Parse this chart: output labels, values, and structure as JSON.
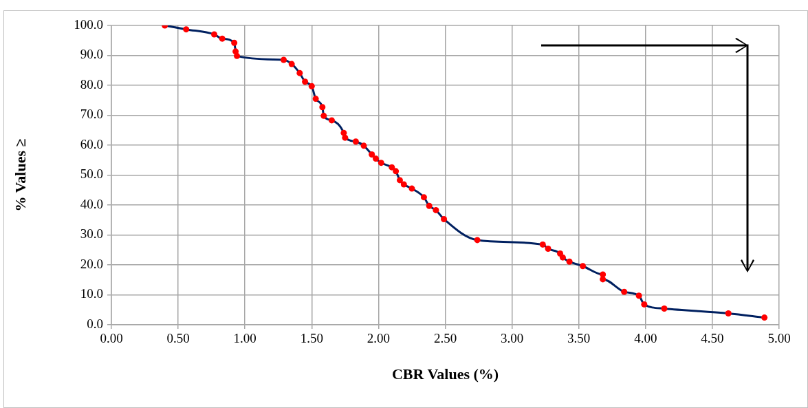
{
  "chart_data": {
    "type": "line",
    "xlabel": "CBR Values (%)",
    "ylabel": "% Values ≥",
    "xlim": [
      0,
      5
    ],
    "xticks": [
      {
        "value": 0,
        "label": "0.00"
      },
      {
        "value": 0.5,
        "label": "0.50"
      },
      {
        "value": 1,
        "label": "1.00"
      },
      {
        "value": 1.5,
        "label": "1.50"
      },
      {
        "value": 2,
        "label": "2.00"
      },
      {
        "value": 2.5,
        "label": "2.50"
      },
      {
        "value": 3,
        "label": "3.00"
      },
      {
        "value": 3.5,
        "label": "3.50"
      },
      {
        "value": 4,
        "label": "4.00"
      },
      {
        "value": 4.5,
        "label": "4.50"
      },
      {
        "value": 5,
        "label": "5.00"
      }
    ],
    "ylim": [
      0,
      100
    ],
    "yticks": [
      {
        "value": 0,
        "label": "0.0"
      },
      {
        "value": 10,
        "label": "10.0"
      },
      {
        "value": 20,
        "label": "20.0"
      },
      {
        "value": 30,
        "label": "30.0"
      },
      {
        "value": 40,
        "label": "40.0"
      },
      {
        "value": 50,
        "label": "50.0"
      },
      {
        "value": 60,
        "label": "60.0"
      },
      {
        "value": 70,
        "label": "70.0"
      },
      {
        "value": 80,
        "label": "80.0"
      },
      {
        "value": 90,
        "label": "90.0"
      },
      {
        "value": 100,
        "label": "100.0"
      }
    ],
    "grid": true,
    "legend": false,
    "marker": "circle",
    "line_style": "solid",
    "series": [
      {
        "color": "#002060",
        "colors": [
          "#ff0000",
          "#ff0000",
          "#ff0000",
          "#ff0000",
          "#ff0000",
          "#ff0000",
          "#ff0000",
          "#ff0000",
          "#ff0000",
          "#ff0000",
          "#ff0000",
          "#ff0000",
          "#ff0000",
          "#ff0000",
          "#ff0000",
          "#ff0000",
          "#ff0000",
          "#ff0000",
          "#ff0000",
          "#ff0000",
          "#ff0000",
          "#ff0000",
          "#ff0000",
          "#ff0000",
          "#ff0000",
          "#ff0000",
          "#ff0000",
          "#ff0000",
          "#ff0000",
          "#ff0000",
          "#ff0000",
          "#ff0000",
          "#ff0000",
          "#ff0000",
          "#ff0000",
          "#ff0000",
          "#ff0000",
          "#ff0000",
          "#ff0000",
          "#ff0000",
          "#ff0000",
          "#ff0000",
          "#ff0000",
          "#ff0000",
          "#ff0000",
          "#ff0000",
          "#ff0000"
        ],
        "x": [
          0.4,
          0.56,
          0.77,
          0.83,
          0.92,
          0.93,
          0.94,
          1.29,
          1.35,
          1.41,
          1.45,
          1.5,
          1.53,
          1.58,
          1.59,
          1.65,
          1.74,
          1.75,
          1.83,
          1.89,
          1.95,
          1.98,
          2.02,
          2.1,
          2.13,
          2.16,
          2.19,
          2.25,
          2.34,
          2.38,
          2.43,
          2.49,
          2.74,
          3.23,
          3.27,
          3.36,
          3.38,
          3.43,
          3.53,
          3.68,
          3.68,
          3.84,
          3.95,
          3.99,
          4.14,
          4.62,
          4.89
        ],
        "values": [
          100,
          98.7,
          97.0,
          95.6,
          94.2,
          91.3,
          89.8,
          88.5,
          87.1,
          84.1,
          81.2,
          79.7,
          75.5,
          72.7,
          69.8,
          68.3,
          64.1,
          62.5,
          61.2,
          59.8,
          56.9,
          55.5,
          54.1,
          52.6,
          51.3,
          48.3,
          46.9,
          45.5,
          42.6,
          39.7,
          38.3,
          35.3,
          28.3,
          26.8,
          25.4,
          23.8,
          22.5,
          21.1,
          19.6,
          16.8,
          15.2,
          11.0,
          9.7,
          6.8,
          5.4,
          3.8,
          2.4
        ]
      }
    ]
  }
}
